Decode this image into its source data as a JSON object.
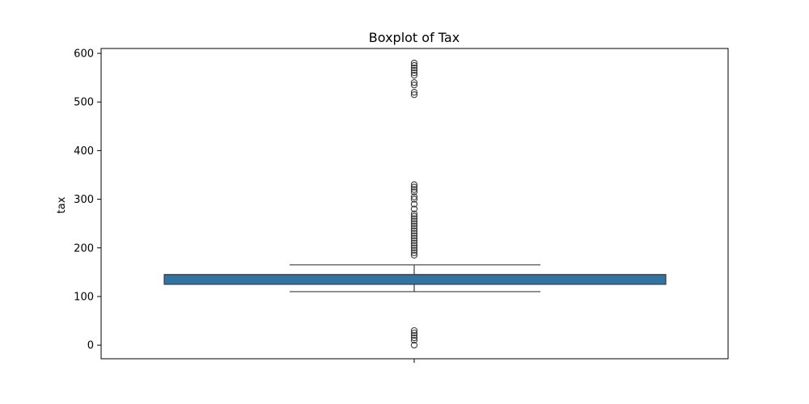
{
  "chart_data": {
    "type": "box",
    "title": "Boxplot of Tax",
    "xlabel": "",
    "ylabel": "tax",
    "ylim": [
      -28,
      610
    ],
    "yticks": [
      0,
      100,
      200,
      300,
      400,
      500,
      600
    ],
    "grid": false,
    "legend": "none",
    "box": {
      "whisker_low": 110,
      "q1": 125,
      "median": 145,
      "q3": 145,
      "whisker_high": 165,
      "fill_color": "#3274a1",
      "edge_color": "#3d3d3d"
    },
    "outliers": [
      0,
      10,
      15,
      20,
      25,
      30,
      185,
      190,
      195,
      200,
      205,
      210,
      215,
      220,
      225,
      230,
      235,
      240,
      245,
      250,
      255,
      260,
      265,
      270,
      280,
      290,
      300,
      305,
      315,
      320,
      325,
      330,
      515,
      520,
      535,
      540,
      555,
      560,
      565,
      570,
      575,
      580
    ]
  }
}
